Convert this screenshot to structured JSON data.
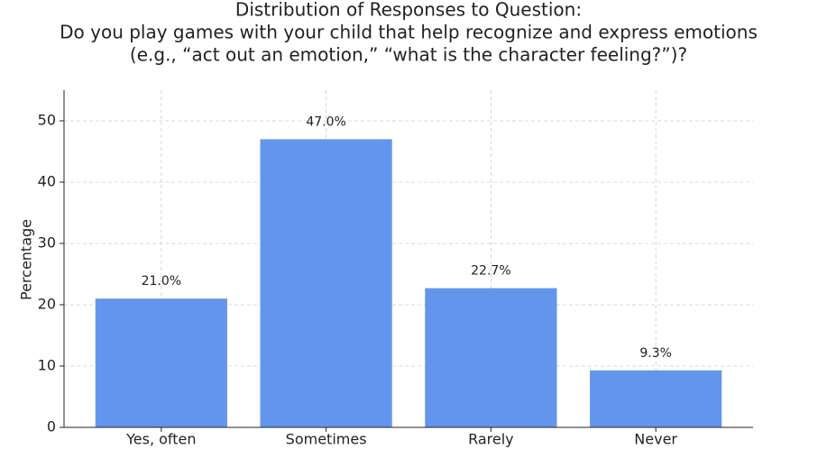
{
  "chart_data": {
    "type": "bar",
    "title": [
      "Distribution of Responses to Question:",
      "Do you play games with your child that help recognize and express emotions",
      "(e.g., “act out an emotion,” “what is the character feeling?”)?"
    ],
    "y_label": "Percentage",
    "categories": [
      "Yes, often",
      "Sometimes",
      "Rarely",
      "Never"
    ],
    "values": [
      21.0,
      47.0,
      22.7,
      9.3
    ],
    "value_labels": [
      "21.0%",
      "47.0%",
      "22.7%",
      "9.3%"
    ],
    "color": "#6495ed",
    "ylim": [
      0,
      55
    ],
    "yticks": [
      0,
      10,
      20,
      30,
      40,
      50
    ],
    "grid": true
  }
}
